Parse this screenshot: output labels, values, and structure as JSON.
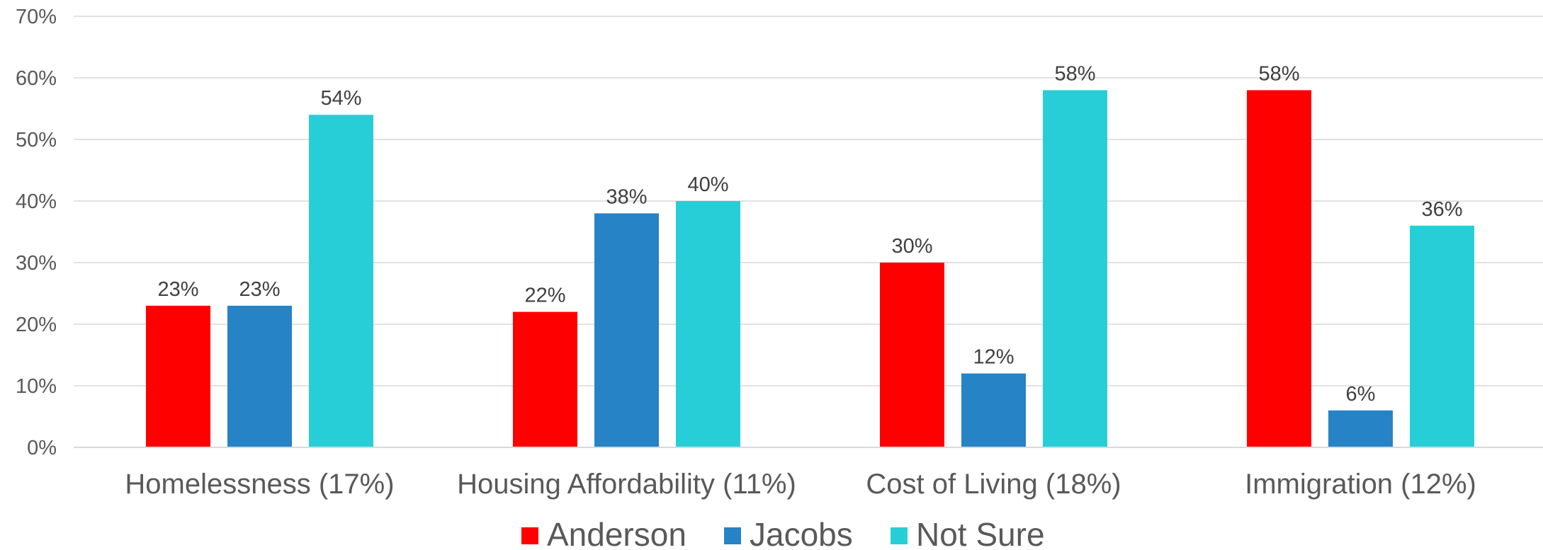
{
  "chart_data": {
    "type": "bar",
    "categories": [
      "Homelessness (17%)",
      "Housing Affordability (11%)",
      "Cost of Living (18%)",
      "Immigration (12%)"
    ],
    "series": [
      {
        "name": "Anderson",
        "color": "#ff0000",
        "values": [
          23,
          22,
          30,
          58
        ],
        "labels": [
          "23%",
          "22%",
          "30%",
          "58%"
        ]
      },
      {
        "name": "Jacobs",
        "color": "#2683c6",
        "values": [
          23,
          38,
          12,
          6
        ],
        "labels": [
          "23%",
          "38%",
          "12%",
          "6%"
        ]
      },
      {
        "name": "Not Sure",
        "color": "#27ced7",
        "values": [
          54,
          40,
          58,
          36
        ],
        "labels": [
          "54%",
          "40%",
          "58%",
          "36%"
        ]
      }
    ],
    "title": "",
    "xlabel": "",
    "ylabel": "",
    "ylim": [
      0,
      70
    ],
    "yticks": [
      "0%",
      "10%",
      "20%",
      "30%",
      "40%",
      "50%",
      "60%",
      "70%"
    ],
    "grid": true,
    "legend": "bottom"
  }
}
